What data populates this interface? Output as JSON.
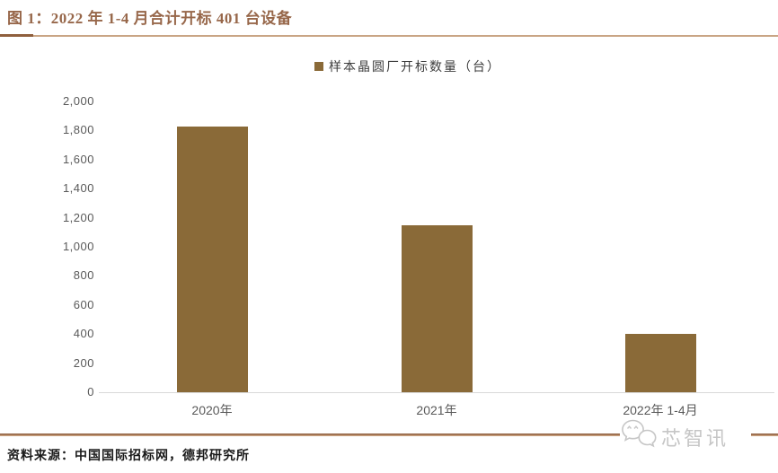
{
  "figure": {
    "title": "图 1：2022 年 1-4 月合计开标 401 台设备",
    "source_note": "资料来源：中国国际招标网，德邦研究所",
    "watermark_text": "芯智讯",
    "watermark_logo": "chat-bubbles-icon"
  },
  "chart_data": {
    "type": "bar",
    "title": "图 1：2022 年 1-4 月合计开标 401 台设备",
    "legend": [
      {
        "label": "样本晶圆厂开标数量（台）",
        "marker": "square",
        "color": "#8A6A38"
      }
    ],
    "legend_position": "top-center",
    "categories": [
      "2020年",
      "2021年",
      "2022年 1-4月"
    ],
    "series": [
      {
        "name": "样本晶圆厂开标数量（台）",
        "values": [
          1830,
          1150,
          401
        ]
      }
    ],
    "xlabel": "",
    "ylabel": "",
    "ylim": [
      0,
      2000
    ],
    "ytick_step": 200,
    "ytick_labels": [
      "0",
      "200",
      "400",
      "600",
      "800",
      "1,000",
      "1,200",
      "1,400",
      "1,600",
      "1,800",
      "2,000"
    ],
    "grid": false
  },
  "colors": {
    "bar": "#8A6A38",
    "title_text": "#97674A",
    "title_rule": "#C9A585",
    "title_rule_accent": "#8F5F3D",
    "axis_text": "#595959",
    "baseline": "#D9D9D9",
    "bottom_rule_dark": "#8F5F3F",
    "bottom_rule_light": "#C79F7D",
    "legend_text": "#3D3D3D",
    "watermark": "#C6C6C6",
    "source_text": "#1A1A1A",
    "background": "#FFFFFF"
  }
}
